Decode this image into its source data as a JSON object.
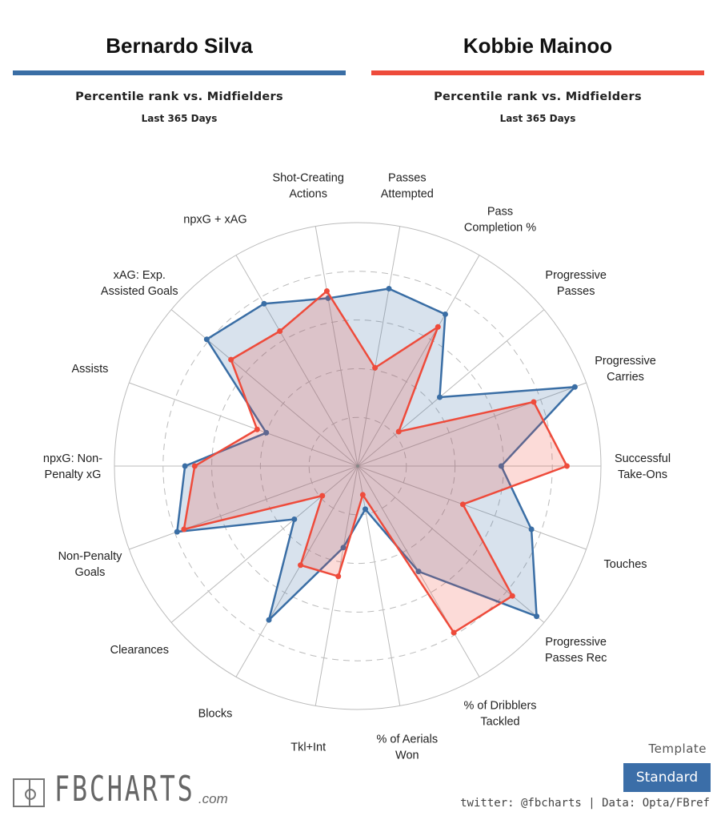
{
  "players": [
    {
      "name": "Bernardo Silva",
      "subtitle": "Percentile rank vs. Midfielders",
      "period": "Last 365 Days",
      "color": "#3a6ea5"
    },
    {
      "name": "Kobbie Mainoo",
      "subtitle": "Percentile rank vs. Midfielders",
      "period": "Last 365 Days",
      "color": "#ee4b3b"
    }
  ],
  "chart_data": {
    "type": "radar",
    "range": [
      0,
      100
    ],
    "rings": [
      20,
      40,
      60,
      80,
      100
    ],
    "categories": [
      "Passes\nAttempted",
      "Pass\nCompletion %",
      "Progressive\nPasses",
      "Progressive\nCarries",
      "Successful\nTake-Ons",
      "Touches",
      "Progressive\nPasses Rec",
      "% of Dribblers\nTackled",
      "% of Aerials\nWon",
      "Tkl+Int",
      "Blocks",
      "Clearances",
      "Non-Penalty\nGoals",
      "npxG: Non-\nPenalty xG",
      "Assists",
      "xAG: Exp.\nAssisted Goals",
      "npxG + xAG",
      "Shot-Creating\nActions"
    ],
    "series": [
      {
        "name": "Bernardo Silva",
        "color": "#3a6ea5",
        "values": [
          74,
          72,
          44,
          95,
          59,
          76,
          96,
          50,
          18,
          34,
          73,
          34,
          79,
          71,
          40,
          81,
          77,
          70
        ]
      },
      {
        "name": "Kobbie Mainoo",
        "color": "#ee4b3b",
        "values": [
          41,
          66,
          22,
          77,
          86,
          46,
          83,
          79,
          12,
          46,
          47,
          19,
          76,
          67,
          44,
          68,
          64,
          73
        ]
      }
    ]
  },
  "footer": {
    "logo": "FBCHARTS",
    "logo_suffix": ".com",
    "template_label": "Template",
    "template_value": "Standard",
    "credit": "twitter: @fbcharts | Data: Opta/FBref"
  }
}
